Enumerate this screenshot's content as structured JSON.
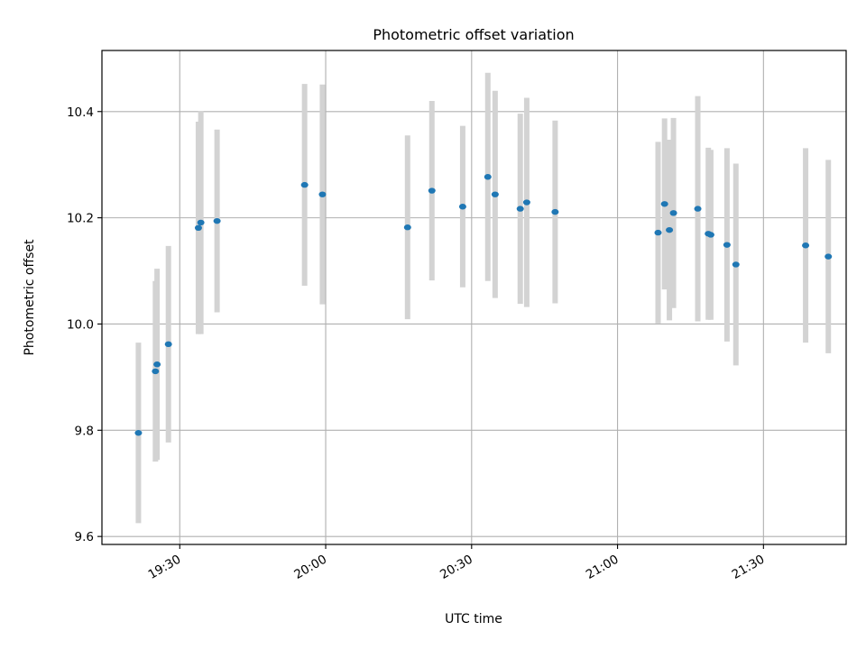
{
  "chart_data": {
    "type": "scatter",
    "title": "Photometric offset variation",
    "xlabel": "UTC time",
    "ylabel": "Photometric offset",
    "xlim": [
      "19:14",
      "21:47"
    ],
    "ylim": [
      9.585,
      10.515
    ],
    "grid": true,
    "x_ticks": [
      "19:30",
      "20:00",
      "20:30",
      "21:00",
      "21:30"
    ],
    "y_ticks": [
      "9.6",
      "9.8",
      "10.0",
      "10.2",
      "10.4"
    ],
    "marker_color": "#1f77b4",
    "errorbar_color": "#d3d3d3",
    "points": [
      {
        "time": "19:21:30",
        "y": 9.795,
        "err": 0.17
      },
      {
        "time": "19:25:00",
        "y": 9.911,
        "err": 0.17
      },
      {
        "time": "19:25:20",
        "y": 9.924,
        "err": 0.18
      },
      {
        "time": "19:27:40",
        "y": 9.962,
        "err": 0.185
      },
      {
        "time": "19:33:50",
        "y": 10.181,
        "err": 0.2
      },
      {
        "time": "19:34:20",
        "y": 10.191,
        "err": 0.21
      },
      {
        "time": "19:37:40",
        "y": 10.194,
        "err": 0.172
      },
      {
        "time": "19:55:40",
        "y": 10.262,
        "err": 0.19
      },
      {
        "time": "19:59:20",
        "y": 10.244,
        "err": 0.207
      },
      {
        "time": "20:16:50",
        "y": 10.182,
        "err": 0.173
      },
      {
        "time": "20:21:50",
        "y": 10.251,
        "err": 0.169
      },
      {
        "time": "20:28:10",
        "y": 10.221,
        "err": 0.152
      },
      {
        "time": "20:33:20",
        "y": 10.277,
        "err": 0.196
      },
      {
        "time": "20:34:50",
        "y": 10.244,
        "err": 0.195
      },
      {
        "time": "20:40:00",
        "y": 10.217,
        "err": 0.179
      },
      {
        "time": "20:41:20",
        "y": 10.229,
        "err": 0.197
      },
      {
        "time": "20:47:10",
        "y": 10.211,
        "err": 0.172
      },
      {
        "time": "21:08:20",
        "y": 10.172,
        "err": 0.171
      },
      {
        "time": "21:09:40",
        "y": 10.226,
        "err": 0.161
      },
      {
        "time": "21:10:40",
        "y": 10.177,
        "err": 0.17
      },
      {
        "time": "21:11:30",
        "y": 10.209,
        "err": 0.179
      },
      {
        "time": "21:16:30",
        "y": 10.217,
        "err": 0.212
      },
      {
        "time": "21:18:40",
        "y": 10.17,
        "err": 0.162
      },
      {
        "time": "21:19:10",
        "y": 10.168,
        "err": 0.16
      },
      {
        "time": "21:22:30",
        "y": 10.149,
        "err": 0.182
      },
      {
        "time": "21:24:20",
        "y": 10.112,
        "err": 0.19
      },
      {
        "time": "21:38:40",
        "y": 10.148,
        "err": 0.183
      },
      {
        "time": "21:43:20",
        "y": 10.127,
        "err": 0.182
      }
    ]
  }
}
